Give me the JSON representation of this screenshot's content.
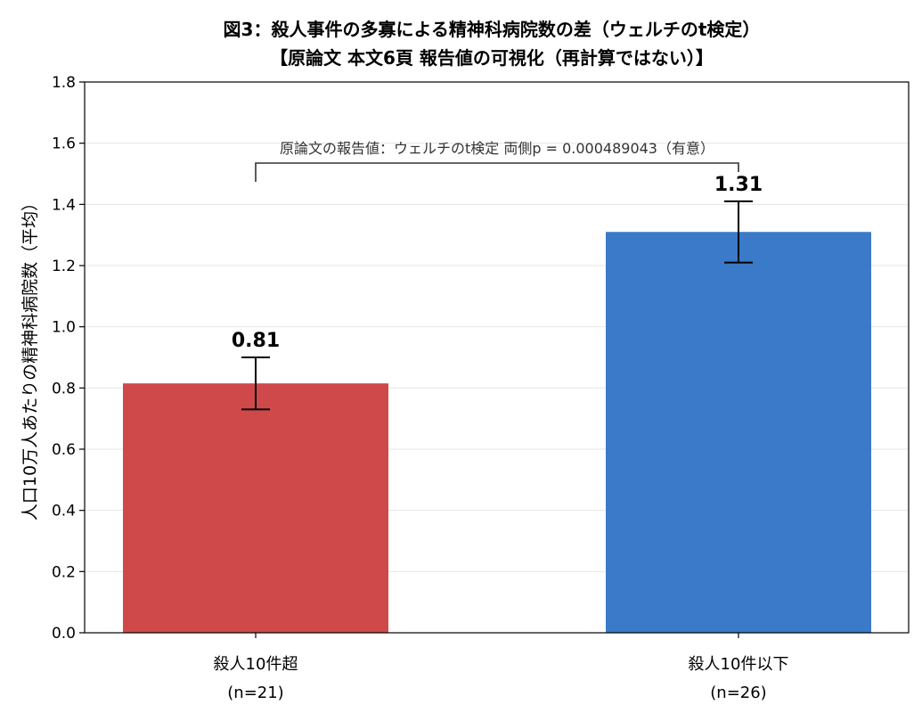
{
  "chart_data": {
    "type": "bar",
    "title": "図3：殺人事件の多寡による精神科病院数の差（ウェルチのt検定）",
    "subtitle": "【原論文 本文6頁 報告値の可視化（再計算ではない）】",
    "xlabel": "",
    "ylabel": "人口10万人あたりの精神科病院数（平均）",
    "ylim": [
      0,
      1.8
    ],
    "yticks": [
      0.0,
      0.2,
      0.4,
      0.6,
      0.8,
      1.0,
      1.2,
      1.4,
      1.6,
      1.8
    ],
    "ytick_labels": [
      "0.0",
      "0.2",
      "0.4",
      "0.6",
      "0.8",
      "1.0",
      "1.2",
      "1.4",
      "1.6",
      "1.8"
    ],
    "grid": "horizontal",
    "categories": [
      {
        "line1": "殺人10件超",
        "line2": "(n=21)"
      },
      {
        "line1": "殺人10件以下",
        "line2": "(n=26)"
      }
    ],
    "values": [
      0.815,
      1.31
    ],
    "value_labels": [
      "0.81",
      "1.31"
    ],
    "error_low": [
      0.73,
      1.21
    ],
    "error_high": [
      0.9,
      1.41
    ],
    "colors": [
      "#d0494a",
      "#3a7ac8"
    ],
    "annotation": "原論文の報告値：ウェルチのt検定 両側p = 0.000489043（有意）"
  }
}
